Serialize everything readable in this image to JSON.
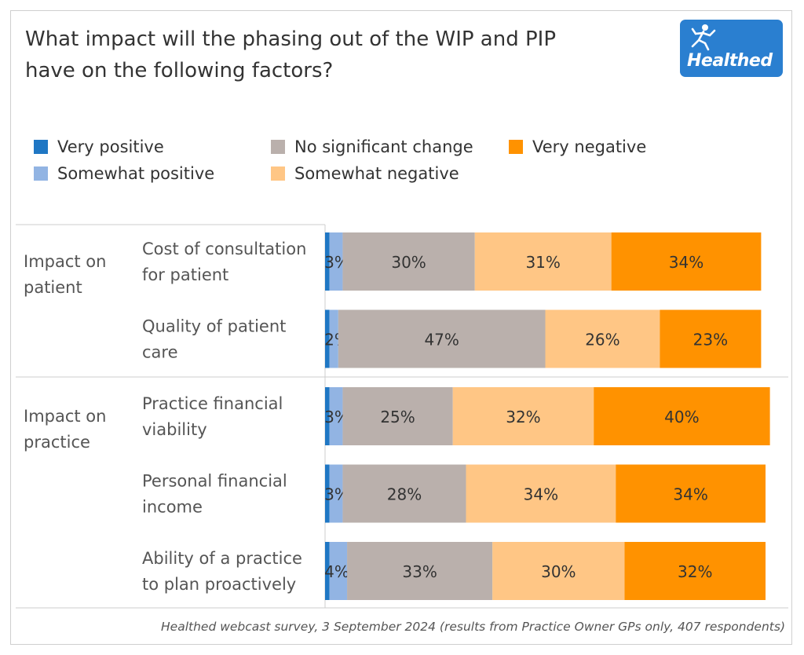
{
  "header": {
    "title_line1": "What impact will the phasing out of the WIP and PIP",
    "title_line2": "have on the following factors?",
    "logo_text": "Healthed"
  },
  "legend": {
    "very_positive": "Very positive",
    "somewhat_positive": "Somewhat positive",
    "no_change": "No significant change",
    "somewhat_negative": "Somewhat negative",
    "very_negative": "Very negative"
  },
  "colors": {
    "very_positive": "#1f77c4",
    "somewhat_positive": "#92b4e3",
    "no_change": "#bab0ac",
    "somewhat_negative": "#ffc685",
    "very_negative": "#ff9200",
    "logo_bg": "#2a7fd0"
  },
  "footnote": "Healthed webcast survey, 3 September 2024 (results from Practice Owner GPs only, 407  respondents)",
  "chart_data": {
    "type": "bar",
    "orientation": "horizontal",
    "stacked": true,
    "groups": [
      {
        "label": [
          "Impact on",
          "patient"
        ],
        "rows": [
          0,
          1
        ]
      },
      {
        "label": [
          "Impact on",
          "practice"
        ],
        "rows": [
          2,
          3,
          4
        ]
      }
    ],
    "categories": [
      [
        "Cost of consultation",
        "for patient"
      ],
      [
        "Quality of patient",
        "care"
      ],
      [
        "Practice financial",
        "viability"
      ],
      [
        "Personal financial",
        "income"
      ],
      [
        "Ability of a practice",
        "to plan proactively"
      ]
    ],
    "series": [
      {
        "name": "Very positive",
        "key": "very_positive",
        "values": [
          1,
          1,
          1,
          1,
          1
        ]
      },
      {
        "name": "Somewhat positive",
        "key": "somewhat_positive",
        "values": [
          3,
          2,
          3,
          3,
          4
        ]
      },
      {
        "name": "No significant change",
        "key": "no_change",
        "values": [
          30,
          47,
          25,
          28,
          33
        ]
      },
      {
        "name": "Somewhat negative",
        "key": "somewhat_negative",
        "values": [
          31,
          26,
          32,
          34,
          30
        ]
      },
      {
        "name": "Very negative",
        "key": "very_negative",
        "values": [
          34,
          23,
          40,
          34,
          32
        ]
      }
    ],
    "data_labels": [
      [
        "",
        "3%",
        "30%",
        "31%",
        "34%"
      ],
      [
        "",
        "2%",
        "47%",
        "26%",
        "23%"
      ],
      [
        "",
        "3%",
        "25%",
        "32%",
        "40%"
      ],
      [
        "",
        "3%",
        "28%",
        "34%",
        "34%"
      ],
      [
        "",
        "4%",
        "33%",
        "30%",
        "32%"
      ]
    ],
    "xlim": [
      0,
      100
    ],
    "legend_position": "top"
  }
}
